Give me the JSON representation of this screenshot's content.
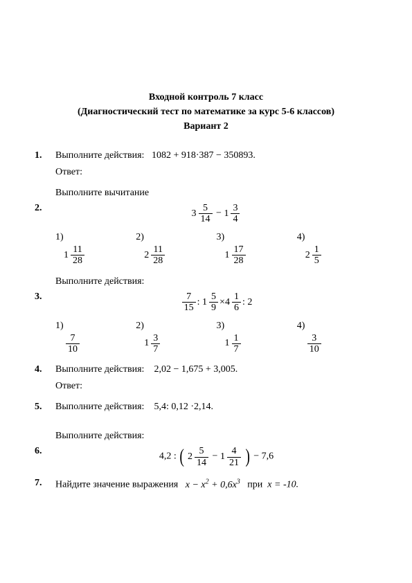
{
  "header": {
    "line1": "Входной контроль 7 класс",
    "line2": "(Диагностический тест по математике за курс 5-6 классов)",
    "line3": "Вариант 2"
  },
  "labels": {
    "answer": "Ответ:",
    "perform_actions": "Выполните действия:",
    "perform_subtraction": "Выполните вычитание",
    "find_value": "Найдите значение выражения",
    "at": "при"
  },
  "p1": {
    "num": "1.",
    "expr": "1082 + 918·387 − 350893."
  },
  "p2": {
    "num": "2.",
    "expr": {
      "a_whole": "3",
      "a_n": "5",
      "a_d": "14",
      "op": "−",
      "b_whole": "1",
      "b_n": "3",
      "b_d": "4"
    },
    "opts": [
      {
        "label": "1)",
        "whole": "1",
        "n": "11",
        "d": "28"
      },
      {
        "label": "2)",
        "whole": "2",
        "n": "11",
        "d": "28"
      },
      {
        "label": "3)",
        "whole": "1",
        "n": "17",
        "d": "28"
      },
      {
        "label": "4)",
        "whole": "2",
        "n": "1",
        "d": "5"
      }
    ]
  },
  "p3": {
    "num": "3.",
    "expr": {
      "a_n": "7",
      "a_d": "15",
      "b_whole": "1",
      "b_n": "5",
      "b_d": "9",
      "c_whole": "4",
      "c_n": "1",
      "c_d": "6",
      "tail": "2"
    },
    "opts": [
      {
        "label": "1)",
        "whole": "",
        "n": "7",
        "d": "10"
      },
      {
        "label": "2)",
        "whole": "1",
        "n": "3",
        "d": "7"
      },
      {
        "label": "3)",
        "whole": "1",
        "n": "1",
        "d": "7"
      },
      {
        "label": "4)",
        "whole": "",
        "n": "3",
        "d": "10"
      }
    ]
  },
  "p4": {
    "num": "4.",
    "expr": "2,02 − 1,675 + 3,005."
  },
  "p5": {
    "num": "5.",
    "expr": "5,4: 0,12 ·2,14."
  },
  "p6": {
    "num": "6.",
    "lead": "4,2 :",
    "a_whole": "2",
    "a_n": "5",
    "a_d": "14",
    "mid_op": "−",
    "b_whole": "1",
    "b_n": "4",
    "b_d": "21",
    "tail": "− 7,6"
  },
  "p7": {
    "num": "7.",
    "expr_html": "x − x<span class='sup'>2</span> + 0,6x<span class='sup'>3</span>",
    "cond": "x = -10."
  }
}
